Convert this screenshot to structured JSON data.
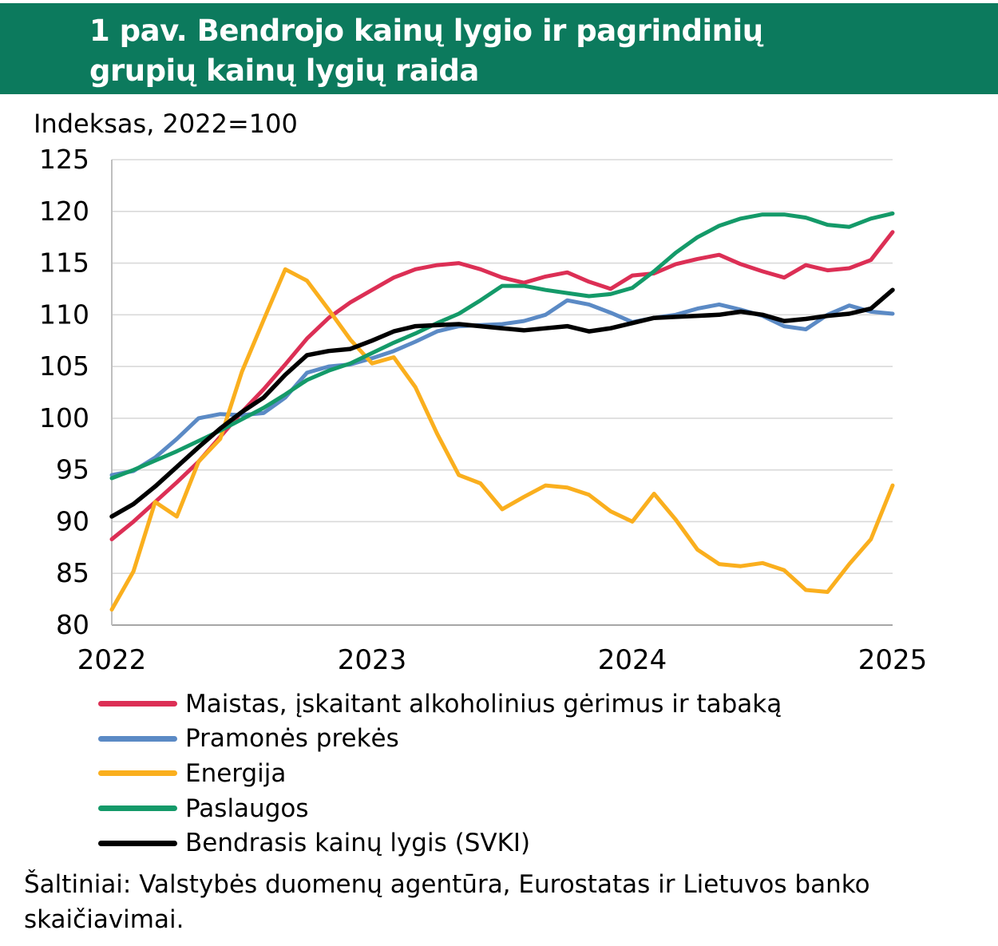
{
  "header": {
    "title_lines": [
      "1 pav. Bendrojo kainų lygio ir pagrindinių",
      "grupių kainų lygių raida"
    ]
  },
  "chart_data": {
    "type": "line",
    "title": "1 pav. Bendrojo kainų lygio ir pagrindinių grupių kainų lygių raida",
    "unit_label": "Indeksas, 2022=100",
    "x_frequency": "monthly",
    "x_start": "2022-01",
    "x_end": "2025-01",
    "x_tick_labels": [
      "2022",
      "2023",
      "2024",
      "2025"
    ],
    "x_tick_month_indices": [
      0,
      12,
      24,
      36
    ],
    "ylim": [
      80,
      125
    ],
    "y_ticks": [
      80,
      85,
      90,
      95,
      100,
      105,
      110,
      115,
      120,
      125
    ],
    "grid": "horizontal",
    "legend_position": "bottom-left",
    "series": [
      {
        "name": "Maistas, įskaitant alkoholinius gėrimus ir tabaką",
        "color": "#DC2F55",
        "values": [
          88.3,
          90.0,
          91.9,
          93.8,
          95.8,
          98.2,
          100.6,
          102.8,
          105.2,
          107.7,
          109.7,
          111.2,
          112.4,
          113.6,
          114.4,
          114.8,
          115.0,
          114.4,
          113.6,
          113.1,
          113.7,
          114.1,
          113.2,
          112.5,
          113.8,
          114.0,
          114.9,
          115.4,
          115.8,
          114.9,
          114.2,
          113.6,
          114.8,
          114.3,
          114.5,
          115.3,
          118.0
        ]
      },
      {
        "name": "Pramonės prekės",
        "color": "#5B8AC5",
        "values": [
          94.5,
          94.9,
          96.2,
          98.0,
          100.0,
          100.4,
          100.3,
          100.5,
          102.0,
          104.4,
          105.0,
          105.2,
          105.8,
          106.5,
          107.4,
          108.4,
          108.9,
          109.0,
          109.1,
          109.4,
          110.0,
          111.4,
          111.0,
          110.2,
          109.3,
          109.7,
          110.0,
          110.6,
          111.0,
          110.5,
          109.9,
          108.9,
          108.6,
          110.0,
          110.9,
          110.3,
          110.1
        ]
      },
      {
        "name": "Energija",
        "color": "#FAAF1E",
        "values": [
          81.5,
          85.2,
          91.9,
          90.5,
          95.8,
          98.0,
          104.5,
          109.5,
          114.4,
          113.3,
          110.5,
          107.6,
          105.3,
          105.9,
          103.0,
          98.5,
          94.5,
          93.7,
          91.2,
          92.4,
          93.5,
          93.3,
          92.6,
          91.0,
          90.0,
          92.7,
          90.2,
          87.3,
          85.9,
          85.7,
          86.0,
          85.3,
          83.4,
          83.2,
          85.9,
          88.3,
          93.5
        ]
      },
      {
        "name": "Paslaugos",
        "color": "#149A69",
        "values": [
          94.2,
          95.0,
          95.9,
          96.8,
          97.8,
          98.8,
          99.9,
          101.0,
          102.3,
          103.7,
          104.6,
          105.3,
          106.3,
          107.3,
          108.2,
          109.2,
          110.1,
          111.4,
          112.8,
          112.8,
          112.4,
          112.1,
          111.8,
          112.0,
          112.6,
          114.2,
          116.0,
          117.5,
          118.6,
          119.3,
          119.7,
          119.7,
          119.4,
          118.7,
          118.5,
          119.3,
          119.8
        ]
      },
      {
        "name": "Bendrasis kainų lygis (SVKI)",
        "color": "#000000",
        "values": [
          90.5,
          91.7,
          93.4,
          95.3,
          97.2,
          99.0,
          100.6,
          102.0,
          104.2,
          106.1,
          106.5,
          106.7,
          107.5,
          108.4,
          108.9,
          109.0,
          109.1,
          108.9,
          108.7,
          108.5,
          108.7,
          108.9,
          108.4,
          108.7,
          109.2,
          109.7,
          109.8,
          109.9,
          110.0,
          110.3,
          110.0,
          109.4,
          109.6,
          109.9,
          110.1,
          110.6,
          112.4
        ]
      }
    ]
  },
  "source": {
    "text": "Šaltiniai: Valstybės duomenų agentūra, Eurostatas ir Lietuvos banko skaičiavimai."
  },
  "colors": {
    "header_bg": "#0C7A5D",
    "grid": "#D9D9D9",
    "axis_line": "#BFBFBF",
    "bottom_line": "#A6A6A6",
    "text": "#000000"
  }
}
